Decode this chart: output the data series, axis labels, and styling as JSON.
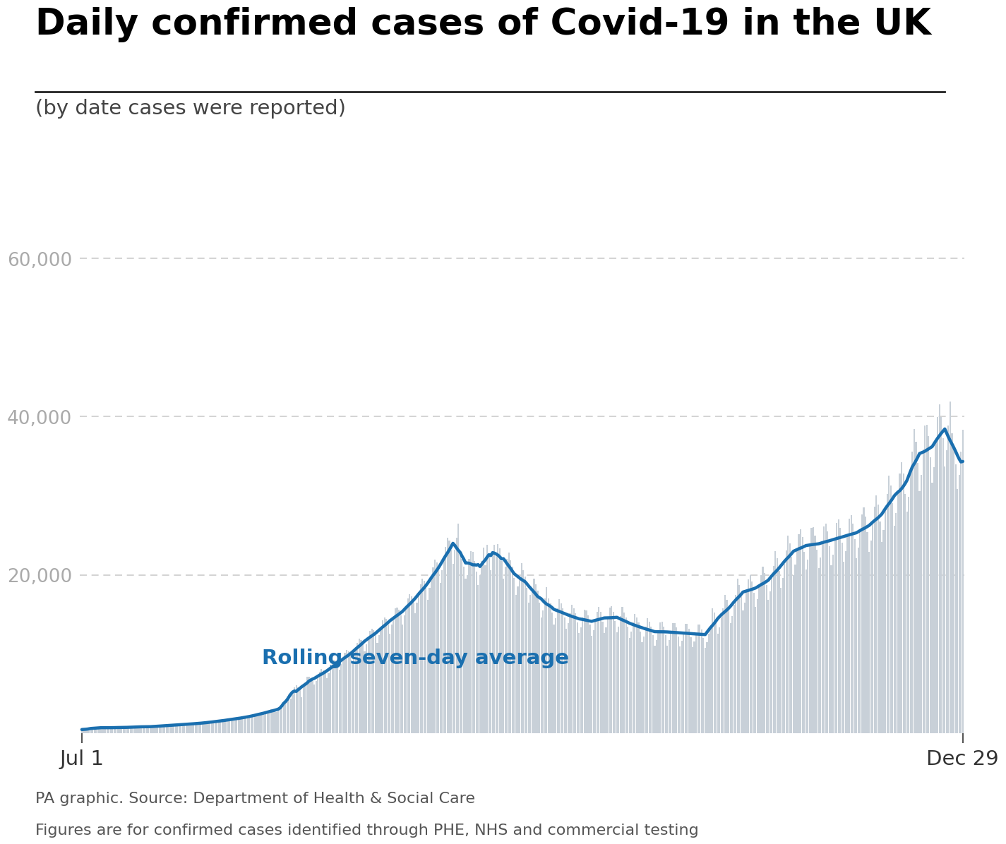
{
  "title": "Daily confirmed cases of Covid-19 in the UK",
  "subtitle": "(by date cases were reported)",
  "source_line1": "PA graphic. Source: Department of Health & Social Care",
  "source_line2": "Figures are for confirmed cases identified through PHE, NHS and commercial testing",
  "annotation": "Rolling seven-day average",
  "bar_color": "#c8d0d8",
  "line_color": "#1a6faf",
  "title_color": "#000000",
  "subtitle_color": "#444444",
  "source_color": "#555555",
  "annotation_color": "#1a6faf",
  "background_color": "#ffffff",
  "grid_color": "#cccccc",
  "tick_label_color": "#aaaaaa",
  "yticks": [
    0,
    20000,
    40000,
    60000
  ],
  "ylim": [
    0,
    68000
  ],
  "xlabel_start": "Jul 1",
  "xlabel_end": "Dec 29",
  "daily_cases": [
    352,
    403,
    544,
    516,
    530,
    584,
    650,
    623,
    698,
    665,
    624,
    672,
    730,
    778,
    688,
    672,
    656,
    620,
    682,
    745,
    763,
    748,
    730,
    680,
    641,
    692,
    748,
    802,
    820,
    800,
    760,
    710,
    753,
    815,
    880,
    869,
    822,
    780,
    730,
    778,
    840,
    912,
    956,
    928,
    888,
    826,
    892,
    963,
    1041,
    1062,
    1035,
    988,
    921,
    977,
    1056,
    1148,
    1182,
    1148,
    1090,
    1015,
    1083,
    1164,
    1265,
    1295,
    1272,
    1208,
    1128,
    1202,
    1295,
    1409,
    1441,
    1440,
    1380,
    1298,
    1367,
    1481,
    1614,
    1656,
    1640,
    1570,
    1480,
    1566,
    1693,
    1840,
    1896,
    1880,
    1790,
    1680,
    1780,
    1925,
    2095,
    2173,
    2158,
    2054,
    1942,
    2063,
    2236,
    2440,
    2547,
    2529,
    2420,
    2286,
    2420,
    2629,
    2878,
    3000,
    2972,
    2840,
    2680,
    2820,
    3060,
    3338,
    3539,
    3991,
    4634,
    4926,
    4322,
    4926,
    5765,
    6042,
    5765,
    5534,
    4534,
    5765,
    6178,
    7143,
    7108,
    6968,
    6634,
    6178,
    6634,
    7143,
    7752,
    8117,
    7969,
    7574,
    6968,
    7574,
    8117,
    8830,
    9279,
    9143,
    8713,
    8000,
    8713,
    9279,
    10118,
    10496,
    10353,
    9849,
    9034,
    9849,
    10496,
    11426,
    11974,
    11792,
    11229,
    10320,
    11229,
    11974,
    12907,
    13186,
    12972,
    12361,
    11371,
    12361,
    13186,
    14259,
    14617,
    14393,
    13706,
    12605,
    13706,
    14617,
    15752,
    15841,
    15601,
    14868,
    13690,
    14868,
    15841,
    17000,
    17540,
    17271,
    16461,
    15170,
    16461,
    17540,
    18784,
    19523,
    19236,
    18329,
    16883,
    18329,
    19523,
    20926,
    21915,
    21577,
    20565,
    18943,
    20565,
    21915,
    23498,
    24701,
    24321,
    23190,
    21358,
    23190,
    24701,
    26477,
    22885,
    22000,
    21068,
    19530,
    20000,
    22000,
    23012,
    22885,
    21780,
    20430,
    18750,
    20000,
    21780,
    23400,
    21248,
    23800,
    22500,
    20600,
    22500,
    23800,
    22600,
    23880,
    23340,
    21760,
    19560,
    21000,
    22000,
    22800,
    21800,
    21000,
    19600,
    17500,
    18500,
    19800,
    21500,
    20560,
    19780,
    18380,
    16450,
    17500,
    18000,
    19500,
    18780,
    18000,
    16500,
    14600,
    15500,
    17000,
    18450,
    17000,
    16380,
    15200,
    13750,
    14500,
    15800,
    16900,
    16380,
    15750,
    14580,
    13150,
    13900,
    15120,
    16200,
    15750,
    15120,
    14000,
    12650,
    13380,
    14580,
    15620,
    15500,
    14850,
    13680,
    12270,
    13000,
    14250,
    15350,
    15958,
    15300,
    14100,
    12650,
    13400,
    14680,
    15820,
    16000,
    15350,
    14150,
    12700,
    13500,
    14800,
    15950,
    15200,
    14600,
    13450,
    12050,
    12800,
    14000,
    15100,
    14600,
    13980,
    12850,
    11500,
    12250,
    13450,
    14500,
    14100,
    13500,
    12380,
    11050,
    11800,
    12950,
    14000,
    14050,
    13450,
    12350,
    11050,
    11780,
    12900,
    13920,
    13920,
    13330,
    12250,
    10950,
    11680,
    12800,
    13800,
    13800,
    13220,
    12150,
    10850,
    11550,
    12680,
    13680,
    13680,
    13100,
    12050,
    10770,
    11460,
    12560,
    13560,
    15800,
    15200,
    14050,
    12580,
    13350,
    14650,
    15800,
    17500,
    16800,
    15500,
    13900,
    14780,
    16200,
    17480,
    19500,
    18700,
    17280,
    15500,
    16450,
    18000,
    19400,
    20000,
    19200,
    17750,
    15950,
    16950,
    18550,
    20000,
    21000,
    20200,
    18700,
    16800,
    17870,
    19570,
    21100,
    23000,
    22100,
    20500,
    18400,
    19570,
    21400,
    23100,
    25000,
    24000,
    22260,
    20000,
    21280,
    23260,
    25100,
    25748,
    24750,
    22950,
    20640,
    21950,
    24000,
    25900,
    26000,
    25000,
    23180,
    20840,
    22150,
    24230,
    26100,
    26500,
    25490,
    23620,
    21250,
    22570,
    24680,
    26600,
    27000,
    25970,
    24080,
    21680,
    23020,
    25160,
    27100,
    27500,
    26450,
    24520,
    22080,
    23460,
    25640,
    27600,
    28500,
    27400,
    25420,
    22890,
    24320,
    26580,
    28600,
    30000,
    28850,
    26780,
    24130,
    25650,
    28060,
    30250,
    32500,
    31250,
    29030,
    26180,
    27820,
    30400,
    32800,
    34215,
    32800,
    30260,
    27990,
    29870,
    32830,
    35600,
    38385,
    36850,
    34130,
    30600,
    32650,
    35850,
    38900,
    39000,
    37500,
    34880,
    31620,
    33590,
    36950,
    39900,
    41535,
    39980,
    37280,
    33740,
    35770,
    38870,
    41900,
    37892,
    36500,
    34000,
    30800,
    32650,
    35580,
    38300
  ]
}
